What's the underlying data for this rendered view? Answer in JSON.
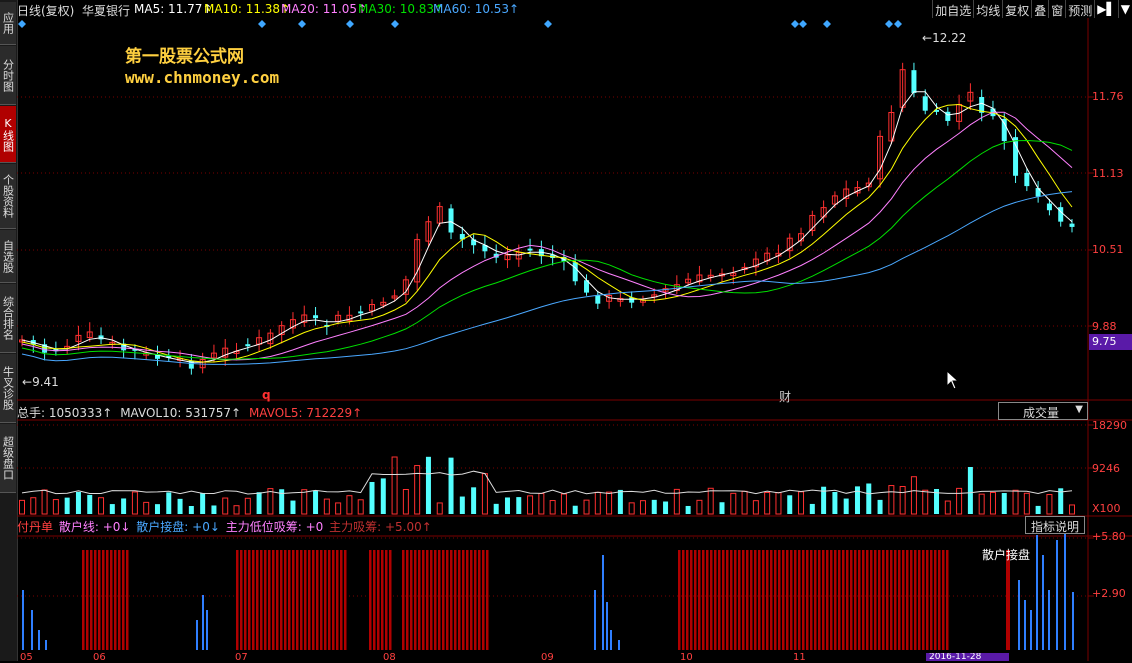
{
  "sidebar": {
    "items": [
      {
        "label": "应用"
      },
      {
        "label": "分时图"
      },
      {
        "label": "K线图"
      },
      {
        "label": "个股资料"
      },
      {
        "label": "自选股"
      },
      {
        "label": "综合排名"
      },
      {
        "label": "牛叉诊股"
      },
      {
        "label": "超级盘口"
      }
    ]
  },
  "header": {
    "period": "日线(复权)",
    "stock_name": "华夏银行",
    "ma5": "MA5: 11.77↑",
    "ma10": "MA10: 11.38↑",
    "ma20": "MA20: 11.05↑",
    "ma30": "MA30: 10.83↑",
    "ma60": "MA60: 10.53↑"
  },
  "toolbar": {
    "add_watch": "加自选",
    "avg_line": "均线",
    "restore": "复权",
    "overlay": "叠",
    "window": "窗",
    "forecast": "预测"
  },
  "watermark": {
    "title": "第一股票公式网",
    "url": "www.chnmoney.com"
  },
  "price_chart": {
    "high_label": "12.22",
    "low_label": "9.41",
    "marker_q": "q",
    "marker_cai": "财",
    "axis_ticks": [
      "11.76",
      "11.13",
      "10.51",
      "9.88"
    ],
    "current_price": "9.75"
  },
  "volume": {
    "total_hand": "总手: 1050333↑",
    "mavol10": "MAVOL10: 531757↑",
    "mavol5": "MAVOL5: 712229↑",
    "selector": "成交量",
    "axis_ticks": [
      "18290",
      "9246"
    ],
    "unit": "X100"
  },
  "indicator": {
    "name": "付丹单",
    "retail_line": "散户线: +0↓",
    "retail_take": "散户接盘: +0↓",
    "main_low": "主力低位吸筹: +0",
    "main_absorb": "主力吸筹: +5.00↑",
    "explain_btn": "指标说明",
    "label_retail": "散户接盘",
    "axis_ticks": [
      "5.80",
      "2.90"
    ]
  },
  "xaxis": {
    "months": [
      "05",
      "06",
      "07",
      "08",
      "09",
      "10",
      "11"
    ],
    "date_label": "2016-11-28"
  },
  "colors": {
    "up": "#ff3030",
    "down": "#54ffff",
    "ma5": "#ffffff",
    "ma10": "#ffff00",
    "ma20": "#ff80ff",
    "ma30": "#00e000",
    "ma60": "#4aa8ff",
    "grid": "#7a0000",
    "absorb_bar": "#b00000",
    "retail_bar": "#2f7fff"
  }
}
